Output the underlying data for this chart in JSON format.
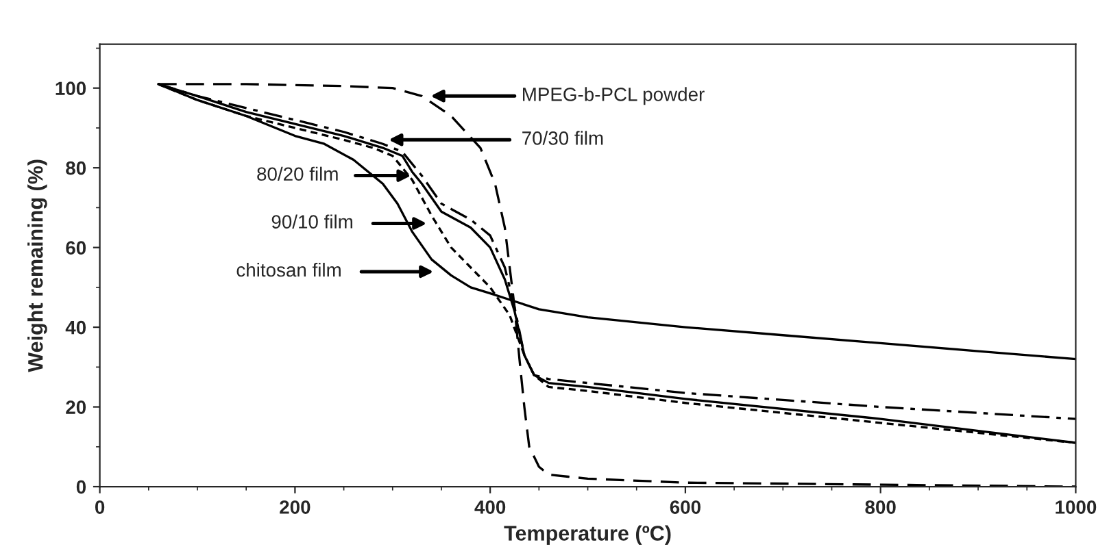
{
  "chart_data": {
    "type": "line",
    "xlabel": "Temperature (ºC)",
    "ylabel": "Weight remaining (%)",
    "xlim": [
      0,
      1000
    ],
    "ylim": [
      0,
      111
    ],
    "xticks": [
      0,
      200,
      400,
      600,
      800,
      1000
    ],
    "yticks": [
      0,
      20,
      40,
      60,
      80,
      100
    ],
    "grid": false,
    "legend": false,
    "marker": "none",
    "series": [
      {
        "color": "#000000",
        "line_style": "dashed",
        "x": [
          60,
          150,
          250,
          300,
          330,
          360,
          390,
          405,
          415,
          420,
          425,
          430,
          435,
          440,
          450,
          460,
          480,
          500,
          600,
          800,
          1000
        ],
        "values": [
          101,
          101,
          100.5,
          100,
          98,
          93,
          85,
          76,
          65,
          55,
          45,
          32,
          20,
          10,
          5,
          3,
          2.5,
          2,
          1,
          0.5,
          0
        ]
      },
      {
        "color": "#000000",
        "line_style": "dashdot",
        "x": [
          60,
          100,
          150,
          200,
          250,
          290,
          310,
          330,
          350,
          380,
          400,
          415,
          425,
          435,
          445,
          460,
          500,
          600,
          800,
          1000
        ],
        "values": [
          101,
          98,
          95,
          92,
          89,
          86,
          84,
          78,
          71,
          67,
          63,
          55,
          45,
          33,
          28,
          27,
          26,
          23.5,
          20,
          17
        ]
      },
      {
        "color": "#000000",
        "line_style": "solid",
        "x": [
          60,
          100,
          150,
          200,
          250,
          290,
          310,
          320,
          330,
          350,
          380,
          400,
          415,
          425,
          435,
          445,
          460,
          500,
          600,
          800,
          1000
        ],
        "values": [
          101,
          98,
          94,
          91,
          88,
          85,
          83,
          79,
          76,
          69,
          65,
          60,
          52,
          44,
          33,
          28,
          26,
          25,
          22,
          17,
          11
        ]
      },
      {
        "color": "#000000",
        "line_style": "dotted",
        "x": [
          60,
          100,
          150,
          200,
          250,
          280,
          300,
          320,
          340,
          360,
          380,
          400,
          420,
          435,
          445,
          460,
          500,
          600,
          800,
          1000
        ],
        "values": [
          101,
          97,
          93,
          90,
          87,
          85,
          83,
          77,
          68,
          60,
          55,
          50,
          43,
          33,
          28,
          25,
          24,
          21,
          16,
          11
        ]
      },
      {
        "color": "#000000",
        "line_style": "solid",
        "x": [
          60,
          100,
          150,
          200,
          230,
          260,
          290,
          305,
          320,
          340,
          360,
          380,
          400,
          425,
          450,
          500,
          600,
          700,
          800,
          900,
          1000
        ],
        "values": [
          101,
          97,
          93,
          88,
          86,
          82,
          76,
          71,
          64,
          57,
          53,
          50,
          48.5,
          46.5,
          44.5,
          42.5,
          40,
          38,
          36,
          34,
          32
        ]
      }
    ],
    "annotations": [
      "MPEG-b-PCL powder",
      "70/30 film",
      "80/20 film",
      "90/10 film",
      "chitosan film"
    ]
  }
}
